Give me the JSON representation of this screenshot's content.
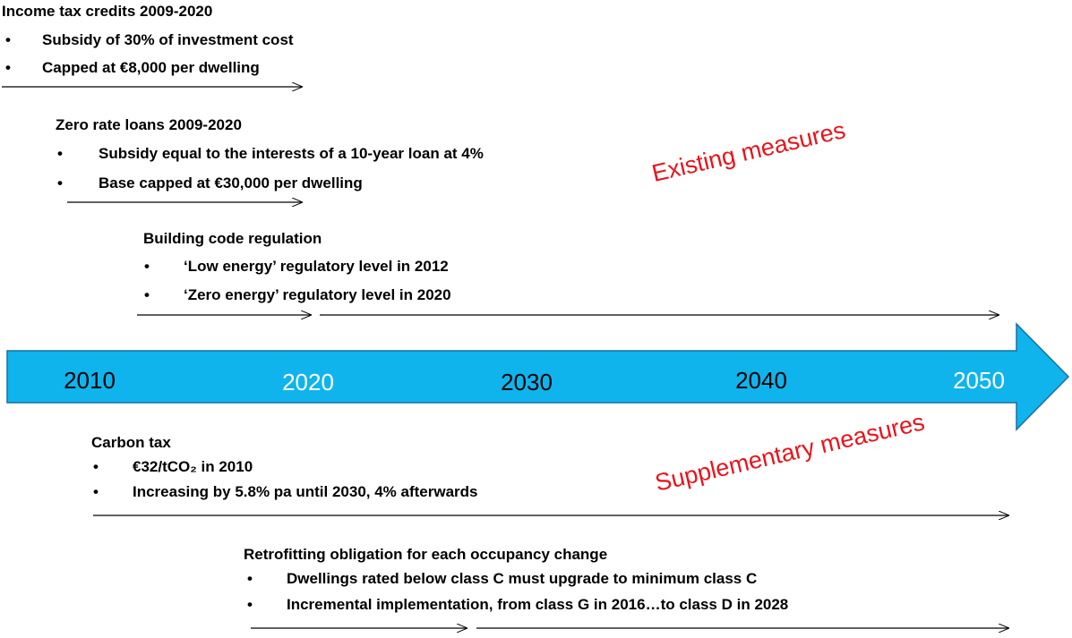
{
  "sections": [
    {
      "title": "Income tax credits 2009-2020",
      "bullets": [
        "Subsidy of 30% of investment cost",
        "Capped at €8,000 per dwelling"
      ]
    },
    {
      "title": "Zero rate loans 2009-2020",
      "bullets": [
        "Subsidy equal to the interests of a 10-year loan at 4%",
        "Base capped at €30,000 per dwelling"
      ]
    },
    {
      "title": "Building code regulation",
      "bullets": [
        "‘Low energy’ regulatory  level in 2012",
        "‘Zero energy’ regulatory level in 2020"
      ]
    },
    {
      "title": "Carbon tax",
      "bullets": [
        "€32/tCO₂ in 2010",
        "Increasing by 5.8% pa until 2030, 4% afterwards"
      ]
    },
    {
      "title": "Retrofitting obligation for each occupancy change",
      "bullets": [
        "Dwellings rated below class C must upgrade to minimum class C",
        "Incremental implementation, from class G in 2016…to class D in 2028"
      ]
    }
  ],
  "timeline": {
    "years": [
      "2010",
      "2020",
      "2030",
      "2040",
      "2050"
    ]
  },
  "labels": {
    "existing": "Existing measures",
    "supplementary": "Supplementary measures"
  }
}
